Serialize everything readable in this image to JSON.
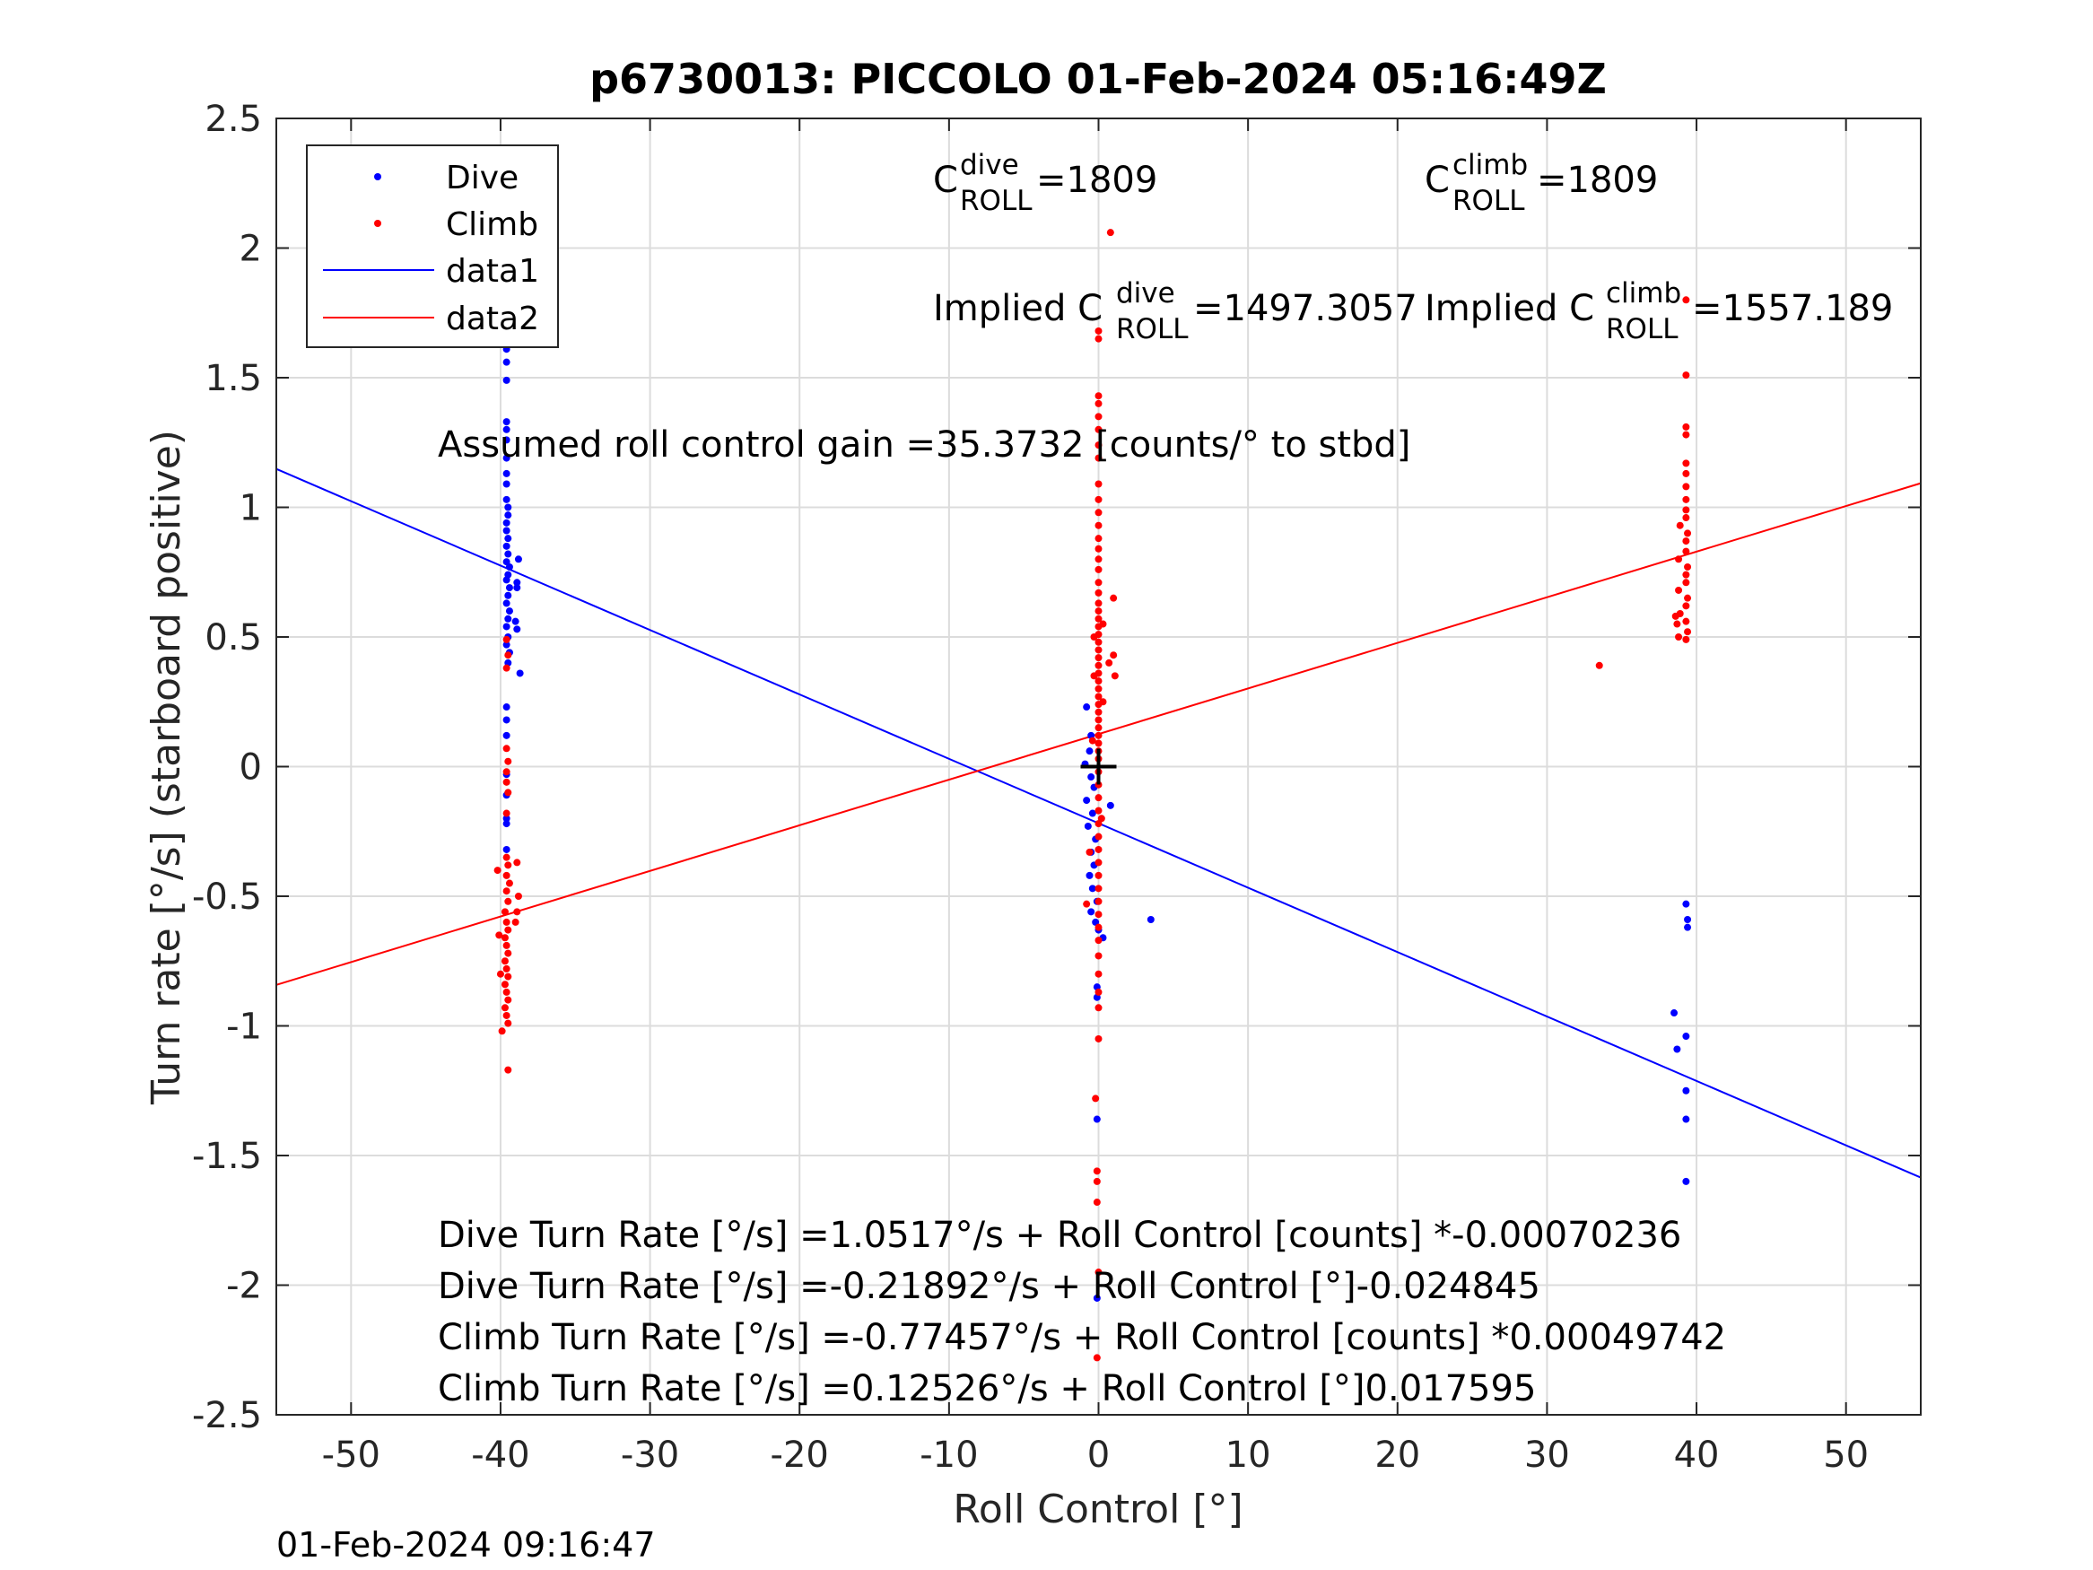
{
  "chart_data": {
    "type": "scatter",
    "title": "p6730013: PICCOLO 01-Feb-2024 05:16:49Z",
    "xlabel": "Roll Control [°]",
    "ylabel": "Turn rate [°/s] (starboard positive)",
    "xlim": [
      -55,
      55
    ],
    "ylim": [
      -2.5,
      2.5
    ],
    "xticks": [
      -50,
      -40,
      -30,
      -20,
      -10,
      0,
      10,
      20,
      30,
      40,
      50
    ],
    "yticks": [
      2.5,
      2,
      1.5,
      1,
      0.5,
      0,
      -0.5,
      -1,
      -1.5,
      -2,
      -2.5
    ],
    "grid": true,
    "legend_position": "top-left",
    "legend": [
      {
        "label": "Dive",
        "kind": "marker",
        "color": "#0000ff"
      },
      {
        "label": "Climb",
        "kind": "marker",
        "color": "#ff0000"
      },
      {
        "label": "data1",
        "kind": "line",
        "color": "#0000ff"
      },
      {
        "label": "data2",
        "kind": "line",
        "color": "#ff0000"
      }
    ],
    "series": [
      {
        "name": "Dive",
        "color": "#0000ff",
        "points": [
          [
            -39.6,
            1.65
          ],
          [
            -39.6,
            1.61
          ],
          [
            -39.6,
            1.56
          ],
          [
            -39.6,
            1.49
          ],
          [
            -39.6,
            1.33
          ],
          [
            -39.6,
            1.3
          ],
          [
            -39.6,
            1.26
          ],
          [
            -39.6,
            1.19
          ],
          [
            -39.6,
            1.13
          ],
          [
            -39.6,
            1.09
          ],
          [
            -39.6,
            1.03
          ],
          [
            -39.5,
            1.0
          ],
          [
            -39.5,
            0.97
          ],
          [
            -39.6,
            0.94
          ],
          [
            -39.6,
            0.91
          ],
          [
            -39.5,
            0.88
          ],
          [
            -39.6,
            0.85
          ],
          [
            -39.5,
            0.82
          ],
          [
            -39.6,
            0.79
          ],
          [
            -39.4,
            0.77
          ],
          [
            -39.5,
            0.74
          ],
          [
            -39.6,
            0.72
          ],
          [
            -39.4,
            0.69
          ],
          [
            -39.5,
            0.66
          ],
          [
            -39.6,
            0.63
          ],
          [
            -39.4,
            0.6
          ],
          [
            -39.5,
            0.57
          ],
          [
            -39.6,
            0.54
          ],
          [
            -39.5,
            0.5
          ],
          [
            -39.6,
            0.47
          ],
          [
            -39.4,
            0.44
          ],
          [
            -39.5,
            0.4
          ],
          [
            -38.8,
            0.8
          ],
          [
            -38.9,
            0.71
          ],
          [
            -38.9,
            0.69
          ],
          [
            -39.0,
            0.56
          ],
          [
            -38.9,
            0.53
          ],
          [
            -38.7,
            0.36
          ],
          [
            -39.6,
            0.23
          ],
          [
            -39.6,
            0.18
          ],
          [
            -39.6,
            0.12
          ],
          [
            -39.6,
            -0.03
          ],
          [
            -39.6,
            -0.11
          ],
          [
            -39.6,
            -0.2
          ],
          [
            -39.6,
            -0.22
          ],
          [
            -39.6,
            -0.32
          ],
          [
            -0.8,
            0.23
          ],
          [
            -0.5,
            0.12
          ],
          [
            -0.6,
            0.06
          ],
          [
            -0.9,
            0.01
          ],
          [
            -0.5,
            -0.04
          ],
          [
            -0.3,
            -0.08
          ],
          [
            -0.8,
            -0.13
          ],
          [
            -0.4,
            -0.18
          ],
          [
            -0.7,
            -0.23
          ],
          [
            -0.2,
            -0.28
          ],
          [
            -0.5,
            -0.33
          ],
          [
            -0.3,
            -0.38
          ],
          [
            -0.6,
            -0.42
          ],
          [
            -0.4,
            -0.47
          ],
          [
            -0.1,
            -0.52
          ],
          [
            -0.5,
            -0.56
          ],
          [
            -0.2,
            -0.6
          ],
          [
            0.0,
            -0.63
          ],
          [
            0.3,
            -0.66
          ],
          [
            0.8,
            -0.15
          ],
          [
            3.5,
            -0.59
          ],
          [
            -0.1,
            -0.85
          ],
          [
            -0.1,
            -0.89
          ],
          [
            -0.1,
            -1.36
          ],
          [
            -0.1,
            -2.05
          ],
          [
            38.5,
            -0.95
          ],
          [
            38.7,
            -1.09
          ],
          [
            39.3,
            -0.53
          ],
          [
            39.4,
            -0.59
          ],
          [
            39.4,
            -0.62
          ],
          [
            39.3,
            -1.04
          ],
          [
            39.3,
            -1.25
          ],
          [
            39.3,
            -1.36
          ],
          [
            39.3,
            -1.6
          ]
        ]
      },
      {
        "name": "Climb",
        "color": "#ff0000",
        "points": [
          [
            -39.6,
            0.49
          ],
          [
            -39.5,
            0.43
          ],
          [
            -39.6,
            0.38
          ],
          [
            -39.6,
            0.07
          ],
          [
            -39.5,
            0.02
          ],
          [
            -39.6,
            -0.02
          ],
          [
            -39.6,
            -0.06
          ],
          [
            -39.5,
            -0.1
          ],
          [
            -39.6,
            -0.18
          ],
          [
            -39.6,
            -0.35
          ],
          [
            -39.5,
            -0.38
          ],
          [
            -39.6,
            -0.42
          ],
          [
            -39.4,
            -0.45
          ],
          [
            -39.6,
            -0.48
          ],
          [
            -39.5,
            -0.52
          ],
          [
            -39.7,
            -0.56
          ],
          [
            -39.6,
            -0.6
          ],
          [
            -39.5,
            -0.63
          ],
          [
            -39.7,
            -0.66
          ],
          [
            -39.6,
            -0.69
          ],
          [
            -39.5,
            -0.72
          ],
          [
            -39.7,
            -0.75
          ],
          [
            -39.6,
            -0.78
          ],
          [
            -39.5,
            -0.81
          ],
          [
            -39.7,
            -0.84
          ],
          [
            -39.6,
            -0.87
          ],
          [
            -39.5,
            -0.9
          ],
          [
            -39.7,
            -0.93
          ],
          [
            -39.6,
            -0.96
          ],
          [
            -39.5,
            -0.99
          ],
          [
            -39.9,
            -1.02
          ],
          [
            -40.2,
            -0.4
          ],
          [
            -40.1,
            -0.65
          ],
          [
            -40.0,
            -0.8
          ],
          [
            -38.9,
            -0.37
          ],
          [
            -38.8,
            -0.5
          ],
          [
            -38.9,
            -0.56
          ],
          [
            -39.0,
            -0.6
          ],
          [
            -39.5,
            -1.17
          ],
          [
            0.8,
            2.06
          ],
          [
            0.0,
            1.68
          ],
          [
            0.0,
            1.65
          ],
          [
            0.0,
            1.43
          ],
          [
            0.0,
            1.4
          ],
          [
            0.0,
            1.35
          ],
          [
            0.0,
            1.3
          ],
          [
            0.0,
            1.24
          ],
          [
            0.0,
            1.19
          ],
          [
            0.0,
            1.09
          ],
          [
            0.0,
            1.03
          ],
          [
            0.0,
            0.98
          ],
          [
            0.0,
            0.93
          ],
          [
            0.0,
            0.88
          ],
          [
            0.0,
            0.84
          ],
          [
            0.0,
            0.8
          ],
          [
            0.0,
            0.76
          ],
          [
            0.0,
            0.71
          ],
          [
            0.0,
            0.67
          ],
          [
            0.0,
            0.63
          ],
          [
            0.0,
            0.6
          ],
          [
            0.0,
            0.57
          ],
          [
            0.0,
            0.54
          ],
          [
            0.0,
            0.51
          ],
          [
            0.0,
            0.48
          ],
          [
            0.0,
            0.45
          ],
          [
            0.0,
            0.42
          ],
          [
            0.0,
            0.39
          ],
          [
            0.0,
            0.36
          ],
          [
            0.0,
            0.33
          ],
          [
            0.0,
            0.3
          ],
          [
            0.0,
            0.27
          ],
          [
            0.0,
            0.24
          ],
          [
            0.0,
            0.21
          ],
          [
            0.0,
            0.18
          ],
          [
            0.0,
            0.15
          ],
          [
            0.0,
            0.12
          ],
          [
            0.0,
            0.09
          ],
          [
            0.0,
            0.06
          ],
          [
            0.0,
            0.03
          ],
          [
            0.0,
            -0.02
          ],
          [
            0.0,
            -0.07
          ],
          [
            0.0,
            -0.12
          ],
          [
            0.0,
            -0.17
          ],
          [
            0.0,
            -0.22
          ],
          [
            0.0,
            -0.27
          ],
          [
            0.0,
            -0.32
          ],
          [
            0.0,
            -0.37
          ],
          [
            0.0,
            -0.42
          ],
          [
            0.0,
            -0.47
          ],
          [
            0.0,
            -0.52
          ],
          [
            0.0,
            -0.57
          ],
          [
            0.0,
            -0.62
          ],
          [
            0.0,
            -0.67
          ],
          [
            -0.3,
            0.5
          ],
          [
            0.3,
            0.55
          ],
          [
            -0.3,
            0.35
          ],
          [
            0.3,
            0.25
          ],
          [
            -0.4,
            0.1
          ],
          [
            0.2,
            -0.2
          ],
          [
            -0.6,
            -0.33
          ],
          [
            -0.8,
            -0.53
          ],
          [
            0.7,
            0.4
          ],
          [
            1.0,
            0.65
          ],
          [
            1.0,
            0.43
          ],
          [
            1.1,
            0.35
          ],
          [
            0.0,
            -0.73
          ],
          [
            0.0,
            -0.8
          ],
          [
            0.0,
            -0.87
          ],
          [
            0.0,
            -0.93
          ],
          [
            0.0,
            -1.05
          ],
          [
            -0.2,
            -1.28
          ],
          [
            -0.1,
            -1.56
          ],
          [
            -0.1,
            -1.6
          ],
          [
            -0.1,
            -1.68
          ],
          [
            0.0,
            -1.95
          ],
          [
            -0.1,
            -2.28
          ],
          [
            39.3,
            1.8
          ],
          [
            39.3,
            1.51
          ],
          [
            39.3,
            1.31
          ],
          [
            39.3,
            1.28
          ],
          [
            39.3,
            1.17
          ],
          [
            39.3,
            1.13
          ],
          [
            39.3,
            1.08
          ],
          [
            39.3,
            1.03
          ],
          [
            39.3,
            0.99
          ],
          [
            39.3,
            0.96
          ],
          [
            38.9,
            0.93
          ],
          [
            39.4,
            0.9
          ],
          [
            39.3,
            0.87
          ],
          [
            39.3,
            0.83
          ],
          [
            38.8,
            0.8
          ],
          [
            39.4,
            0.77
          ],
          [
            39.3,
            0.74
          ],
          [
            39.3,
            0.71
          ],
          [
            38.8,
            0.68
          ],
          [
            39.4,
            0.65
          ],
          [
            39.3,
            0.62
          ],
          [
            38.9,
            0.59
          ],
          [
            39.3,
            0.56
          ],
          [
            38.6,
            0.58
          ],
          [
            38.7,
            0.55
          ],
          [
            39.4,
            0.52
          ],
          [
            38.8,
            0.5
          ],
          [
            39.3,
            0.49
          ],
          [
            33.5,
            0.39
          ]
        ]
      }
    ],
    "fit_lines": [
      {
        "name": "data1",
        "color": "#0000ff",
        "x": [
          -55,
          55
        ],
        "y": [
          1.148,
          -1.585
        ]
      },
      {
        "name": "data2",
        "color": "#ff0000",
        "x": [
          -55,
          55
        ],
        "y": [
          -0.842,
          1.093
        ]
      }
    ],
    "center_marker": {
      "x": 0.0,
      "y": 0.0,
      "color": "#000000"
    },
    "annotations": {
      "c_dive_base": "C",
      "c_dive_sup": "dive",
      "c_dive_sub": "ROLL",
      "c_dive_value": " =1809",
      "c_climb_base": "C",
      "c_climb_sup": "climb",
      "c_climb_sub": "ROLL",
      "c_climb_value": " =1809",
      "implied_dive_prefix": "Implied C",
      "implied_dive_sup": "dive",
      "implied_dive_sub": "ROLL",
      "implied_dive_value": " =1497.3057",
      "implied_climb_prefix": "Implied C",
      "implied_climb_sup": "climb",
      "implied_climb_sub": "ROLL",
      "implied_climb_value": " =1557.189",
      "gain": "Assumed roll control gain =35.3732 [counts/° to stbd]",
      "eq1": "Dive Turn Rate [°/s] =1.0517°/s + Roll Control [counts] *-0.00070236",
      "eq2": "Dive Turn Rate [°/s] =-0.21892°/s + Roll Control [°]-0.024845",
      "eq3": "Climb Turn Rate [°/s] =-0.77457°/s + Roll Control [counts] *0.00049742",
      "eq4": "Climb Turn Rate [°/s] =0.12526°/s + Roll Control [°]0.017595"
    }
  },
  "footer": {
    "timestamp": "01-Feb-2024 09:16:47"
  }
}
